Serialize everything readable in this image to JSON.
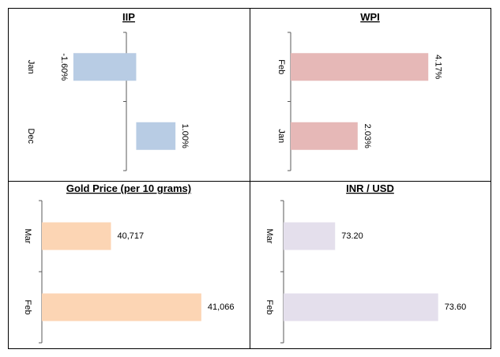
{
  "chart_data": [
    {
      "type": "bar",
      "title": "IIP",
      "orientation": "horizontal",
      "categories": [
        "Jan",
        "Dec"
      ],
      "values": [
        -1.6,
        1.0
      ],
      "value_labels": [
        "-1.60%",
        "1.00%"
      ],
      "label_orientation": "rotated",
      "xlim": [
        -2.0,
        1.5
      ],
      "color": "#b8cce4",
      "grid": false
    },
    {
      "type": "bar",
      "title": "WPI",
      "orientation": "horizontal",
      "categories": [
        "Feb",
        "Jan"
      ],
      "values": [
        4.17,
        2.03
      ],
      "value_labels": [
        "4.17%",
        "2.03%"
      ],
      "label_orientation": "rotated",
      "xlim": [
        0,
        4.5
      ],
      "color": "#e6b8b7",
      "grid": false
    },
    {
      "type": "bar",
      "title": "Gold Price (per 10 grams)",
      "orientation": "horizontal",
      "categories": [
        "Mar",
        "Feb"
      ],
      "values": [
        40717,
        41066
      ],
      "value_labels": [
        "40,717",
        "41,066"
      ],
      "label_orientation": "horizontal",
      "xlim": [
        40450,
        41100
      ],
      "color": "#fcd5b4",
      "grid": false
    },
    {
      "type": "bar",
      "title": "INR / USD",
      "orientation": "horizontal",
      "categories": [
        "Mar",
        "Feb"
      ],
      "values": [
        73.2,
        73.6
      ],
      "value_labels": [
        "73.20",
        "73.60"
      ],
      "label_orientation": "horizontal",
      "xlim": [
        73.0,
        73.65
      ],
      "color": "#e4dfec",
      "grid": false
    }
  ]
}
